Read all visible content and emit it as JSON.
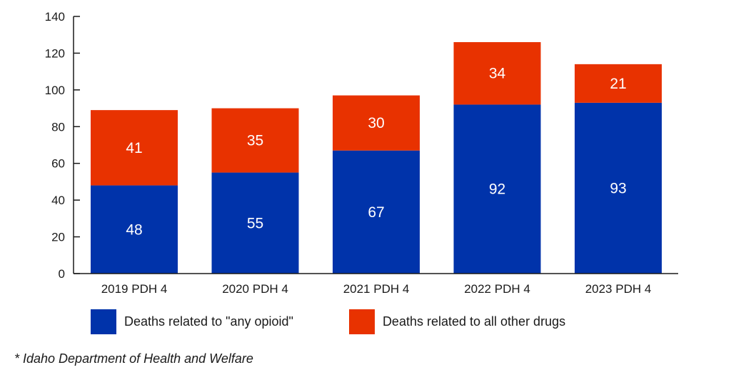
{
  "chart_data": {
    "type": "bar",
    "stacked": true,
    "categories": [
      "2019 PDH 4",
      "2020 PDH 4",
      "2021 PDH 4",
      "2022 PDH 4",
      "2023 PDH 4"
    ],
    "series": [
      {
        "name": "Deaths related to \"any opioid\"",
        "color": "#0033aa",
        "values": [
          48,
          55,
          67,
          92,
          93
        ]
      },
      {
        "name": "Deaths related to all other drugs",
        "color": "#e83200",
        "values": [
          41,
          35,
          30,
          34,
          21
        ]
      }
    ],
    "ylim": [
      0,
      140
    ],
    "yticks": [
      0,
      20,
      40,
      60,
      80,
      100,
      120,
      140
    ],
    "title": "",
    "xlabel": "",
    "ylabel": "",
    "legend_position": "bottom"
  },
  "footnote": "* Idaho Department of Health and Welfare"
}
